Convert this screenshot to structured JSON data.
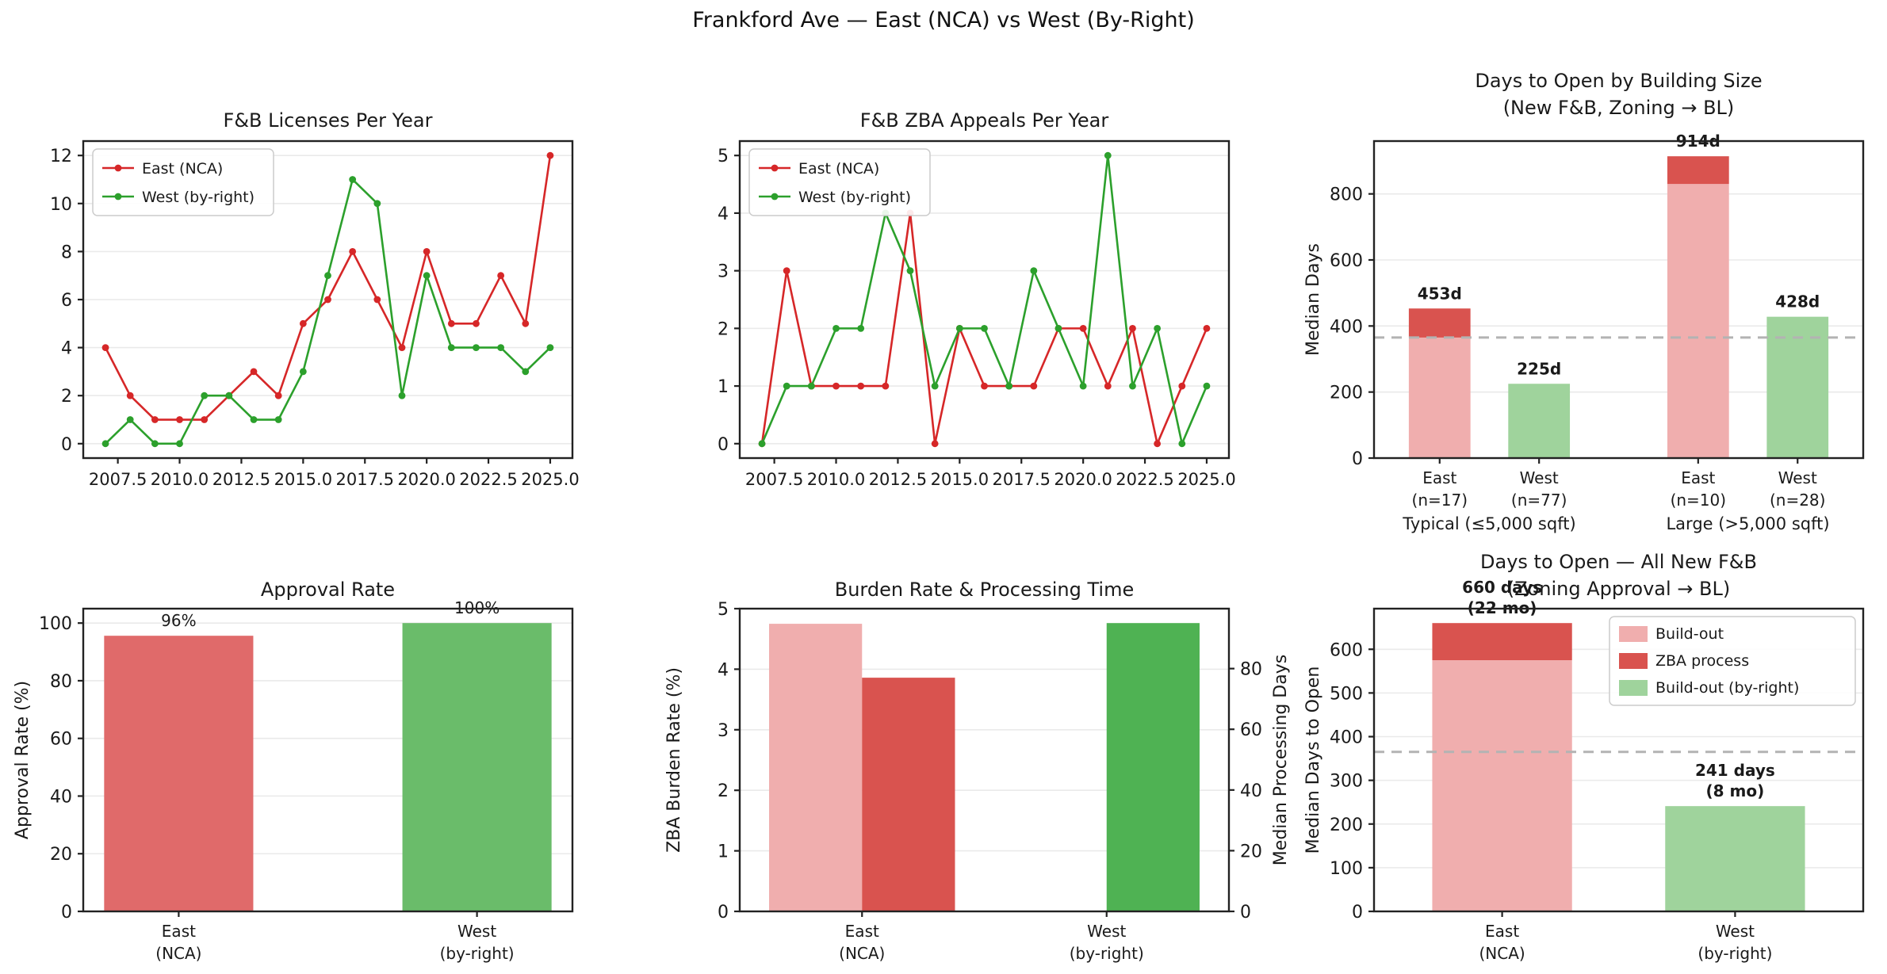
{
  "figure": {
    "title": "Frankford Ave — East (NCA) vs West (By-Right)"
  },
  "palette": {
    "line_red": "#d62728",
    "line_green": "#2ca02c",
    "pink": "#f0aeae",
    "dark_red": "#d9534f",
    "light_green": "#9fd39c",
    "mid_red": "#e06a6a",
    "mid_green": "#6abc6a",
    "strong_green": "#4fb253",
    "dashed_line": "#b3b3b3",
    "grid": "#eaeaea",
    "frame": "#222222"
  },
  "chart_data": [
    {
      "type": "line",
      "title": [
        "F&B Licenses Per Year"
      ],
      "x": [
        2007,
        2008,
        2009,
        2010,
        2011,
        2012,
        2013,
        2014,
        2015,
        2016,
        2017,
        2018,
        2019,
        2020,
        2021,
        2022,
        2023,
        2024,
        2025
      ],
      "series": [
        {
          "name": "East (NCA)",
          "color": "#d62728",
          "values": [
            4,
            2,
            1,
            1,
            1,
            2,
            3,
            2,
            5,
            6,
            8,
            6,
            4,
            8,
            5,
            5,
            7,
            5,
            12
          ]
        },
        {
          "name": "West (by-right)",
          "color": "#2ca02c",
          "values": [
            0,
            1,
            0,
            0,
            2,
            2,
            1,
            1,
            3,
            7,
            11,
            10,
            2,
            7,
            4,
            4,
            4,
            3,
            4
          ]
        }
      ],
      "xlim": [
        2006.1,
        2025.9
      ],
      "ylim": [
        -0.6,
        12.6
      ],
      "yticks": [
        0,
        2,
        4,
        6,
        8,
        10,
        12
      ],
      "xticks": [
        2007.5,
        2010.0,
        2012.5,
        2015.0,
        2017.5,
        2020.0,
        2022.5,
        2025.0
      ],
      "xtick_labels": [
        "2007.5",
        "2010.0",
        "2012.5",
        "2015.0",
        "2017.5",
        "2020.0",
        "2022.5",
        "2025.0"
      ],
      "legend_position": "upper-left",
      "grid": true
    },
    {
      "type": "line",
      "title": [
        "F&B ZBA Appeals Per Year"
      ],
      "x": [
        2007,
        2008,
        2009,
        2010,
        2011,
        2012,
        2013,
        2014,
        2015,
        2016,
        2017,
        2018,
        2019,
        2020,
        2021,
        2022,
        2023,
        2024,
        2025
      ],
      "series": [
        {
          "name": "East (NCA)",
          "color": "#d62728",
          "values": [
            0,
            3,
            1,
            1,
            1,
            1,
            4,
            0,
            2,
            1,
            1,
            1,
            2,
            2,
            1,
            2,
            0,
            1,
            2
          ]
        },
        {
          "name": "West (by-right)",
          "color": "#2ca02c",
          "values": [
            0,
            1,
            1,
            2,
            2,
            4,
            3,
            1,
            2,
            2,
            1,
            3,
            2,
            1,
            5,
            1,
            2,
            0,
            1
          ]
        }
      ],
      "xlim": [
        2006.1,
        2025.9
      ],
      "ylim": [
        -0.25,
        5.25
      ],
      "yticks": [
        0,
        1,
        2,
        3,
        4,
        5
      ],
      "xticks": [
        2007.5,
        2010.0,
        2012.5,
        2015.0,
        2017.5,
        2020.0,
        2022.5,
        2025.0
      ],
      "xtick_labels": [
        "2007.5",
        "2010.0",
        "2012.5",
        "2015.0",
        "2017.5",
        "2020.0",
        "2022.5",
        "2025.0"
      ],
      "legend_position": "upper-left",
      "grid": true
    },
    {
      "type": "bar",
      "title": [
        "Days to Open by Building Size",
        "(New F&B, Zoning → BL)"
      ],
      "ylabel": "Median Days",
      "ylim": [
        0,
        960
      ],
      "yticks": [
        0,
        200,
        400,
        600,
        800
      ],
      "xlim": [
        -0.66,
        4.26
      ],
      "bar_width": 0.62,
      "hline": 365,
      "bars": [
        {
          "x": 0,
          "label": [
            "East",
            "(n=17)"
          ],
          "segments": [
            {
              "value": 365,
              "color": "#f0aeae"
            },
            {
              "value": 88,
              "color": "#d9534f"
            }
          ],
          "annotation": [
            "453d"
          ],
          "annotation_bold": true
        },
        {
          "x": 1,
          "label": [
            "West",
            "(n=77)"
          ],
          "segments": [
            {
              "value": 225,
              "color": "#9fd39c"
            }
          ],
          "annotation": [
            "225d"
          ],
          "annotation_bold": true
        },
        {
          "x": 2.6,
          "label": [
            "East",
            "(n=10)"
          ],
          "segments": [
            {
              "value": 830,
              "color": "#f0aeae"
            },
            {
              "value": 84,
              "color": "#d9534f"
            }
          ],
          "annotation": [
            "914d"
          ],
          "annotation_bold": true
        },
        {
          "x": 3.6,
          "label": [
            "West",
            "(n=28)"
          ],
          "segments": [
            {
              "value": 428,
              "color": "#9fd39c"
            }
          ],
          "annotation": [
            "428d"
          ],
          "annotation_bold": true
        }
      ],
      "group_labels": [
        {
          "text": "Typical (≤5,000 sqft)",
          "x": 0.5
        },
        {
          "text": "Large (>5,000 sqft)",
          "x": 3.1
        }
      ]
    },
    {
      "type": "bar",
      "title": [
        "Approval Rate"
      ],
      "ylabel": "Approval Rate (%)",
      "ylim": [
        0,
        105
      ],
      "yticks": [
        0,
        20,
        40,
        60,
        80,
        100
      ],
      "xlim": [
        -0.32,
        1.32
      ],
      "bar_width": 0.5,
      "bars": [
        {
          "x": 0,
          "label": [
            "East",
            "(NCA)"
          ],
          "segments": [
            {
              "value": 95.6,
              "color": "#e06a6a"
            }
          ],
          "annotation": [
            "96%"
          ],
          "annotation_bold": false
        },
        {
          "x": 1,
          "label": [
            "West",
            "(by-right)"
          ],
          "segments": [
            {
              "value": 100,
              "color": "#6abc6a"
            }
          ],
          "annotation": [
            "100%"
          ],
          "annotation_bold": false
        }
      ]
    },
    {
      "type": "dual-bar",
      "title": [
        "Burden Rate & Processing Time"
      ],
      "ylabel_left": "ZBA Burden Rate (%)",
      "ylabel_right": "Median Processing Days",
      "ylim_left": [
        0,
        5
      ],
      "ylim_right": [
        0,
        99.75
      ],
      "yticks_left": [
        0,
        1,
        2,
        3,
        4,
        5
      ],
      "yticks_right": [
        0,
        20,
        40,
        60,
        80
      ],
      "xlim": [
        -0.5,
        1.5
      ],
      "bar_width": 0.38,
      "bars": [
        {
          "x": 0,
          "offset": -1,
          "axis": "left",
          "value": 4.75,
          "color": "#f0aeae",
          "label": [
            "East",
            "(NCA)"
          ]
        },
        {
          "x": 0,
          "offset": 0,
          "axis": "right",
          "value": 77,
          "color": "#d9534f"
        },
        {
          "x": 1,
          "offset": 0,
          "axis": "right",
          "value": 95,
          "color": "#4fb253",
          "label": [
            "West",
            "(by-right)"
          ]
        }
      ],
      "xtick_positions": [
        0,
        1
      ],
      "xtick_labels": [
        [
          "East",
          "(NCA)"
        ],
        [
          "West",
          "(by-right)"
        ]
      ]
    },
    {
      "type": "bar",
      "title": [
        "Days to Open — All New F&B",
        "(Zoning Approval → BL)"
      ],
      "ylabel": "Median Days to Open",
      "ylim": [
        0,
        693
      ],
      "yticks": [
        0,
        100,
        200,
        300,
        400,
        500,
        600
      ],
      "xlim": [
        -0.55,
        1.55
      ],
      "bar_width": 0.6,
      "hline": 365,
      "bars": [
        {
          "x": 0,
          "label": [
            "East",
            "(NCA)"
          ],
          "segments": [
            {
              "value": 575,
              "color": "#f0aeae"
            },
            {
              "value": 85,
              "color": "#d9534f"
            }
          ],
          "annotation": [
            "660 days",
            "(22 mo)"
          ],
          "annotation_bold": true
        },
        {
          "x": 1,
          "label": [
            "West",
            "(by-right)"
          ],
          "segments": [
            {
              "value": 241,
              "color": "#9fd39c"
            }
          ],
          "annotation": [
            "241 days",
            "(8 mo)"
          ],
          "annotation_bold": true
        }
      ],
      "legend": [
        {
          "label": "Build-out",
          "color": "#f0aeae"
        },
        {
          "label": "ZBA process",
          "color": "#d9534f"
        },
        {
          "label": "Build-out (by-right)",
          "color": "#9fd39c"
        }
      ]
    }
  ]
}
